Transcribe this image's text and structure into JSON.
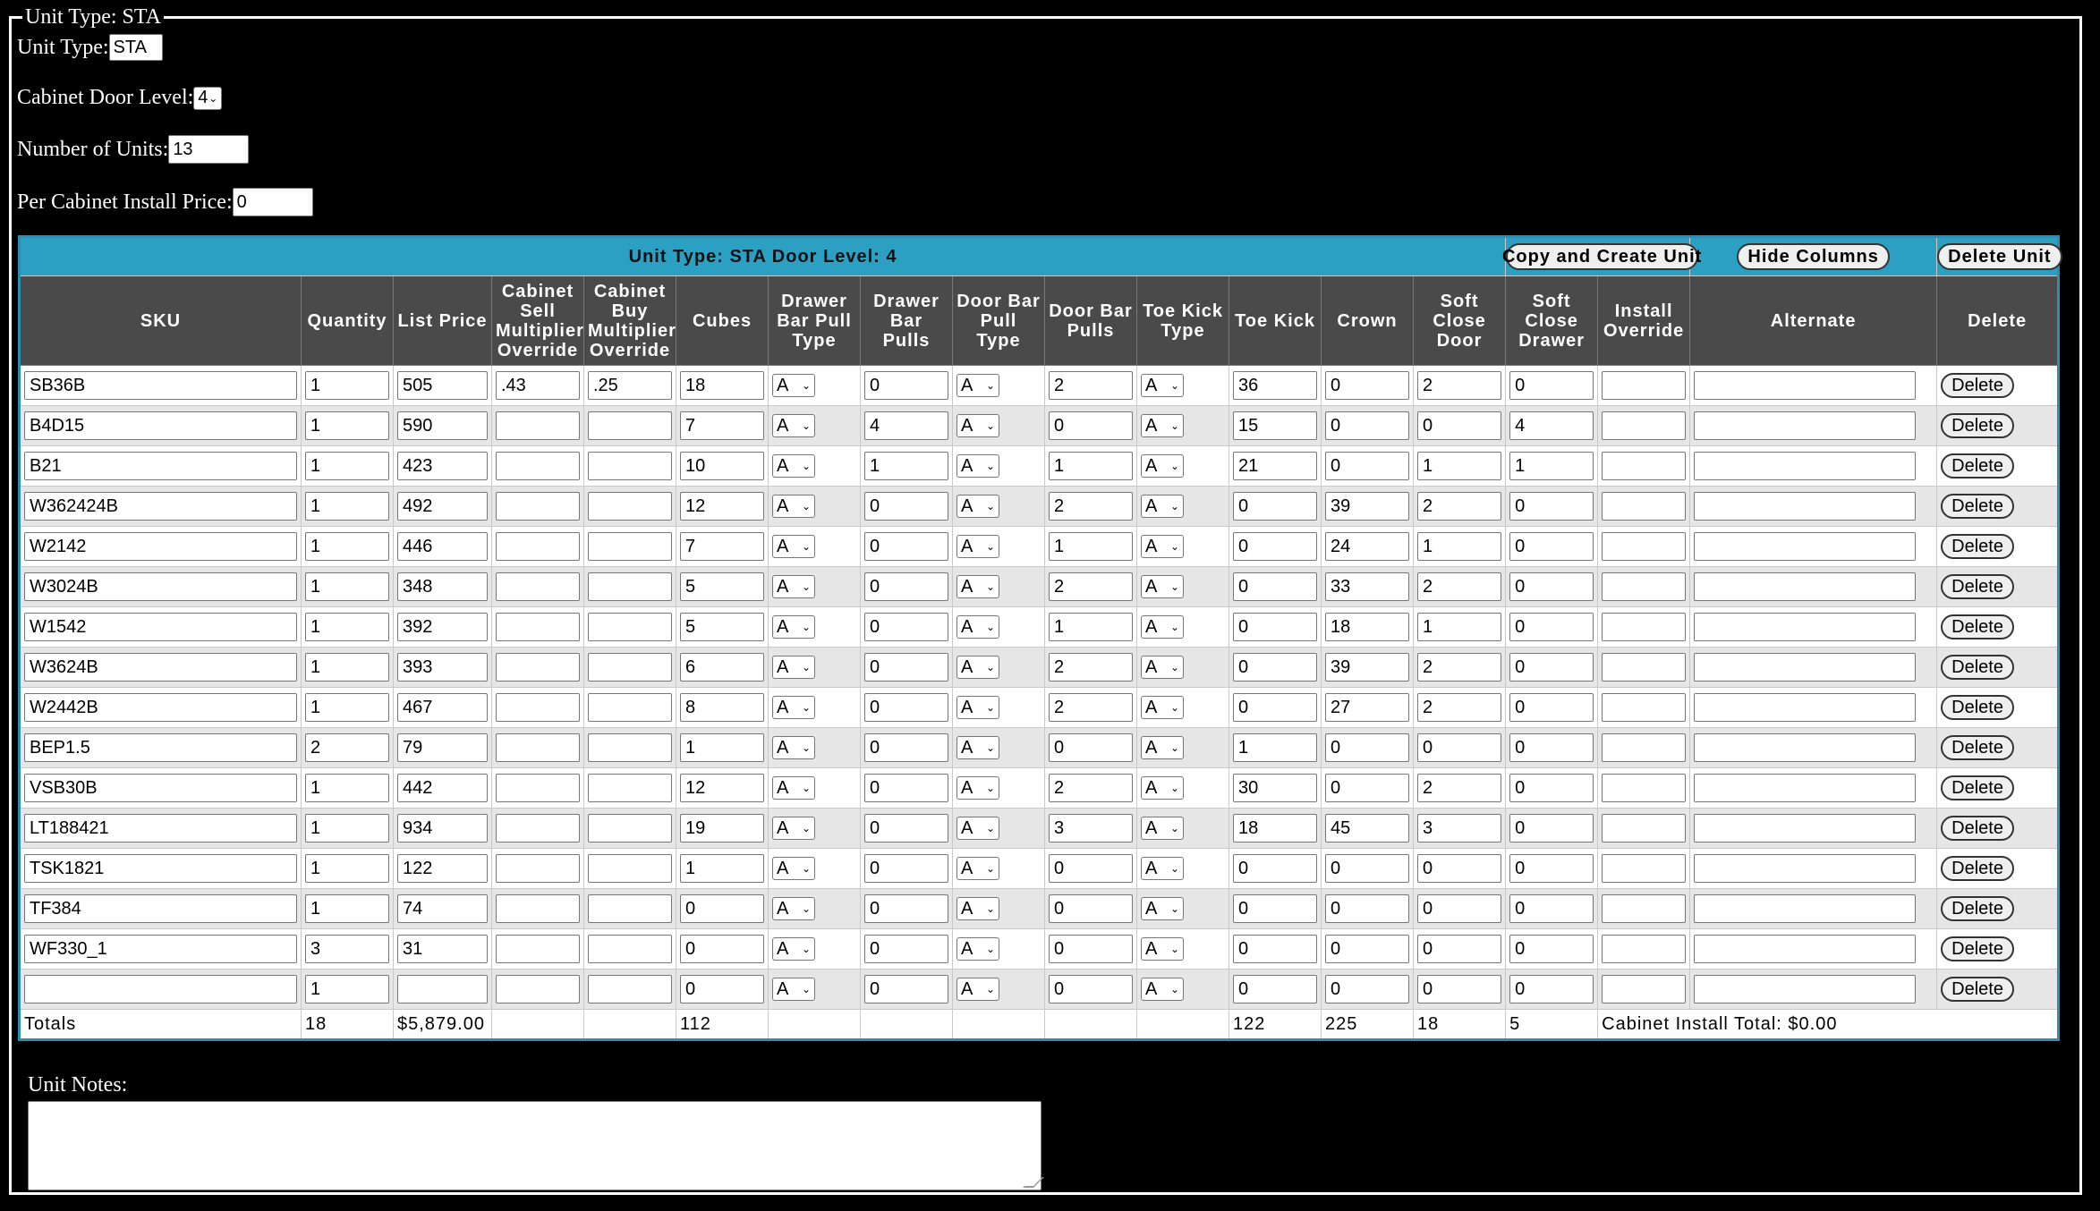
{
  "legend": "Unit Type: STA",
  "form": {
    "unit_type_label": "Unit Type:",
    "unit_type_value": "STA",
    "door_level_label": "Cabinet Door Level:",
    "door_level_value": "4",
    "num_units_label": "Number of Units:",
    "num_units_value": "13",
    "install_price_label": "Per Cabinet Install Price:",
    "install_price_value": "0"
  },
  "table": {
    "title": "Unit Type: STA Door Level: 4",
    "copy_button": "Copy and Create Unit",
    "hide_button": "Hide Columns",
    "delete_unit_button": "Delete Unit",
    "headers": {
      "sku": "SKU",
      "quantity": "Quantity",
      "list_price": "List Price",
      "sell_mult": "Cabinet Sell Multiplier Override",
      "buy_mult": "Cabinet Buy Multiplier Override",
      "cubes": "Cubes",
      "drawer_pull_type": "Drawer Bar Pull Type",
      "drawer_pulls": "Drawer Bar Pulls",
      "door_pull_type": "Door Bar Pull Type",
      "door_pulls": "Door Bar Pulls",
      "toe_kick_type": "Toe Kick Type",
      "toe_kick": "Toe Kick",
      "crown": "Crown",
      "soft_door": "Soft Close Door",
      "soft_drawer": "Soft Close Drawer",
      "install_override": "Install Override",
      "alternate": "Alternate",
      "delete": "Delete"
    },
    "rows": [
      {
        "sku": "SB36B",
        "qty": "1",
        "price": "505",
        "sell": ".43",
        "buy": ".25",
        "cubes": "18",
        "drawer_type": "A",
        "drawer_pulls": "0",
        "door_type": "A",
        "door_pulls": "2",
        "toe_type": "A",
        "toe_kick": "36",
        "crown": "0",
        "soft_door": "2",
        "soft_drawer": "0",
        "install": "",
        "alternate": "",
        "delete": "Delete"
      },
      {
        "sku": "B4D15",
        "qty": "1",
        "price": "590",
        "sell": "",
        "buy": "",
        "cubes": "7",
        "drawer_type": "A",
        "drawer_pulls": "4",
        "door_type": "A",
        "door_pulls": "0",
        "toe_type": "A",
        "toe_kick": "15",
        "crown": "0",
        "soft_door": "0",
        "soft_drawer": "4",
        "install": "",
        "alternate": "",
        "delete": "Delete"
      },
      {
        "sku": "B21",
        "qty": "1",
        "price": "423",
        "sell": "",
        "buy": "",
        "cubes": "10",
        "drawer_type": "A",
        "drawer_pulls": "1",
        "door_type": "A",
        "door_pulls": "1",
        "toe_type": "A",
        "toe_kick": "21",
        "crown": "0",
        "soft_door": "1",
        "soft_drawer": "1",
        "install": "",
        "alternate": "",
        "delete": "Delete"
      },
      {
        "sku": "W362424B",
        "qty": "1",
        "price": "492",
        "sell": "",
        "buy": "",
        "cubes": "12",
        "drawer_type": "A",
        "drawer_pulls": "0",
        "door_type": "A",
        "door_pulls": "2",
        "toe_type": "A",
        "toe_kick": "0",
        "crown": "39",
        "soft_door": "2",
        "soft_drawer": "0",
        "install": "",
        "alternate": "",
        "delete": "Delete"
      },
      {
        "sku": "W2142",
        "qty": "1",
        "price": "446",
        "sell": "",
        "buy": "",
        "cubes": "7",
        "drawer_type": "A",
        "drawer_pulls": "0",
        "door_type": "A",
        "door_pulls": "1",
        "toe_type": "A",
        "toe_kick": "0",
        "crown": "24",
        "soft_door": "1",
        "soft_drawer": "0",
        "install": "",
        "alternate": "",
        "delete": "Delete"
      },
      {
        "sku": "W3024B",
        "qty": "1",
        "price": "348",
        "sell": "",
        "buy": "",
        "cubes": "5",
        "drawer_type": "A",
        "drawer_pulls": "0",
        "door_type": "A",
        "door_pulls": "2",
        "toe_type": "A",
        "toe_kick": "0",
        "crown": "33",
        "soft_door": "2",
        "soft_drawer": "0",
        "install": "",
        "alternate": "",
        "delete": "Delete"
      },
      {
        "sku": "W1542",
        "qty": "1",
        "price": "392",
        "sell": "",
        "buy": "",
        "cubes": "5",
        "drawer_type": "A",
        "drawer_pulls": "0",
        "door_type": "A",
        "door_pulls": "1",
        "toe_type": "A",
        "toe_kick": "0",
        "crown": "18",
        "soft_door": "1",
        "soft_drawer": "0",
        "install": "",
        "alternate": "",
        "delete": "Delete"
      },
      {
        "sku": "W3624B",
        "qty": "1",
        "price": "393",
        "sell": "",
        "buy": "",
        "cubes": "6",
        "drawer_type": "A",
        "drawer_pulls": "0",
        "door_type": "A",
        "door_pulls": "2",
        "toe_type": "A",
        "toe_kick": "0",
        "crown": "39",
        "soft_door": "2",
        "soft_drawer": "0",
        "install": "",
        "alternate": "",
        "delete": "Delete"
      },
      {
        "sku": "W2442B",
        "qty": "1",
        "price": "467",
        "sell": "",
        "buy": "",
        "cubes": "8",
        "drawer_type": "A",
        "drawer_pulls": "0",
        "door_type": "A",
        "door_pulls": "2",
        "toe_type": "A",
        "toe_kick": "0",
        "crown": "27",
        "soft_door": "2",
        "soft_drawer": "0",
        "install": "",
        "alternate": "",
        "delete": "Delete"
      },
      {
        "sku": "BEP1.5",
        "qty": "2",
        "price": "79",
        "sell": "",
        "buy": "",
        "cubes": "1",
        "drawer_type": "A",
        "drawer_pulls": "0",
        "door_type": "A",
        "door_pulls": "0",
        "toe_type": "A",
        "toe_kick": "1",
        "crown": "0",
        "soft_door": "0",
        "soft_drawer": "0",
        "install": "",
        "alternate": "",
        "delete": "Delete"
      },
      {
        "sku": "VSB30B",
        "qty": "1",
        "price": "442",
        "sell": "",
        "buy": "",
        "cubes": "12",
        "drawer_type": "A",
        "drawer_pulls": "0",
        "door_type": "A",
        "door_pulls": "2",
        "toe_type": "A",
        "toe_kick": "30",
        "crown": "0",
        "soft_door": "2",
        "soft_drawer": "0",
        "install": "",
        "alternate": "",
        "delete": "Delete"
      },
      {
        "sku": "LT188421",
        "qty": "1",
        "price": "934",
        "sell": "",
        "buy": "",
        "cubes": "19",
        "drawer_type": "A",
        "drawer_pulls": "0",
        "door_type": "A",
        "door_pulls": "3",
        "toe_type": "A",
        "toe_kick": "18",
        "crown": "45",
        "soft_door": "3",
        "soft_drawer": "0",
        "install": "",
        "alternate": "",
        "delete": "Delete"
      },
      {
        "sku": "TSK1821",
        "qty": "1",
        "price": "122",
        "sell": "",
        "buy": "",
        "cubes": "1",
        "drawer_type": "A",
        "drawer_pulls": "0",
        "door_type": "A",
        "door_pulls": "0",
        "toe_type": "A",
        "toe_kick": "0",
        "crown": "0",
        "soft_door": "0",
        "soft_drawer": "0",
        "install": "",
        "alternate": "",
        "delete": "Delete"
      },
      {
        "sku": "TF384",
        "qty": "1",
        "price": "74",
        "sell": "",
        "buy": "",
        "cubes": "0",
        "drawer_type": "A",
        "drawer_pulls": "0",
        "door_type": "A",
        "door_pulls": "0",
        "toe_type": "A",
        "toe_kick": "0",
        "crown": "0",
        "soft_door": "0",
        "soft_drawer": "0",
        "install": "",
        "alternate": "",
        "delete": "Delete"
      },
      {
        "sku": "WF330_1",
        "qty": "3",
        "price": "31",
        "sell": "",
        "buy": "",
        "cubes": "0",
        "drawer_type": "A",
        "drawer_pulls": "0",
        "door_type": "A",
        "door_pulls": "0",
        "toe_type": "A",
        "toe_kick": "0",
        "crown": "0",
        "soft_door": "0",
        "soft_drawer": "0",
        "install": "",
        "alternate": "",
        "delete": "Delete"
      },
      {
        "sku": "",
        "qty": "1",
        "price": "",
        "sell": "",
        "buy": "",
        "cubes": "0",
        "drawer_type": "A",
        "drawer_pulls": "0",
        "door_type": "A",
        "door_pulls": "0",
        "toe_type": "A",
        "toe_kick": "0",
        "crown": "0",
        "soft_door": "0",
        "soft_drawer": "0",
        "install": "",
        "alternate": "",
        "delete": "Delete"
      }
    ],
    "totals": {
      "label": "Totals",
      "qty": "18",
      "price": "$5,879.00",
      "cubes": "112",
      "toe_kick": "122",
      "crown": "225",
      "soft_door": "18",
      "soft_drawer": "5",
      "install_total": "Cabinet Install Total: $0.00"
    }
  },
  "notes": {
    "label": "Unit Notes:",
    "value": ""
  }
}
